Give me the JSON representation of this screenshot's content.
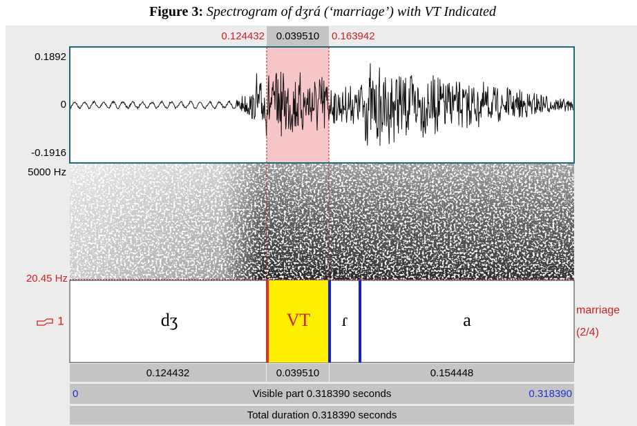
{
  "title": {
    "label": "Figure 3:",
    "text": "Spectrogram of dʒrá (‘marriage’) with VT Indicated"
  },
  "selection": {
    "start": "0.124432",
    "duration": "0.039510",
    "end": "0.163942"
  },
  "waveform": {
    "max": "0.1892",
    "zero": "0",
    "min": "-0.1916"
  },
  "spectrogram": {
    "max": "5000 Hz",
    "min": "20.45 Hz"
  },
  "tier": {
    "number": "1",
    "name": "marriage",
    "index": "(2/4)",
    "intervals": [
      "dʒ",
      "VT",
      "ɾ",
      "a"
    ]
  },
  "durations": [
    "0.124432",
    "0.039510",
    "0.154448"
  ],
  "visible": {
    "start": "0",
    "label": "Visible part 0.318390 seconds",
    "end": "0.318390"
  },
  "total": "Total duration 0.318390 seconds"
}
